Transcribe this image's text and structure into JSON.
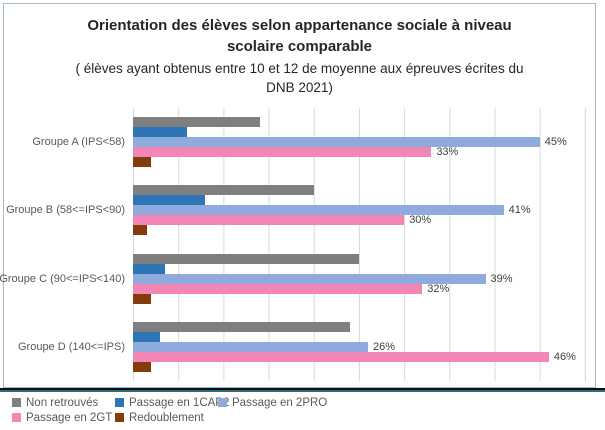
{
  "chart_data": {
    "type": "bar",
    "orientation": "horizontal",
    "title": "Orientation des élèves selon appartenance sociale à niveau scolaire comparable",
    "subtitle": "( élèves ayant obtenus entre 10 et 12 de moyenne aux épreuves écrites du DNB 2021)",
    "categories": [
      "Groupe A (IPS<58)",
      "Groupe B (58<=IPS<90)",
      "Groupe C (90<=IPS<140)",
      "Groupe D (140<=IPS)"
    ],
    "series": [
      {
        "name": "Non retrouvés",
        "color": "#7f7f7f",
        "values": [
          14,
          20,
          25,
          24
        ],
        "data_labels": [
          "",
          "",
          "",
          ""
        ]
      },
      {
        "name": "Passage en 1CAP2",
        "color": "#2e75b6",
        "values": [
          6,
          8,
          3.5,
          3
        ],
        "data_labels": [
          "",
          "",
          "",
          ""
        ]
      },
      {
        "name": "Passage en 2PRO",
        "color": "#8faadc",
        "values": [
          45,
          41,
          39,
          26
        ],
        "data_labels": [
          "45%",
          "41%",
          "39%",
          "26%"
        ]
      },
      {
        "name": "Passage en 2GT",
        "color": "#f287b7",
        "values": [
          33,
          30,
          32,
          46
        ],
        "data_labels": [
          "33%",
          "30%",
          "32%",
          "46%"
        ]
      },
      {
        "name": "Redoublement",
        "color": "#843c0c",
        "values": [
          2,
          1.5,
          2,
          2
        ],
        "data_labels": [
          "",
          "",
          "",
          ""
        ]
      }
    ],
    "xlim": [
      0,
      50
    ],
    "gridline_step_percent": 5,
    "grid": true,
    "legend_position": "bottom"
  },
  "colors": {
    "frame_border": "#a3b9cb",
    "bottom_strip_dark": "#0d0d0d",
    "bottom_strip_teal": "#2f6b79",
    "gridline": "#d9d9d9",
    "title_text": "#262626",
    "axis_text": "#595959",
    "data_label_text": "#404040"
  }
}
